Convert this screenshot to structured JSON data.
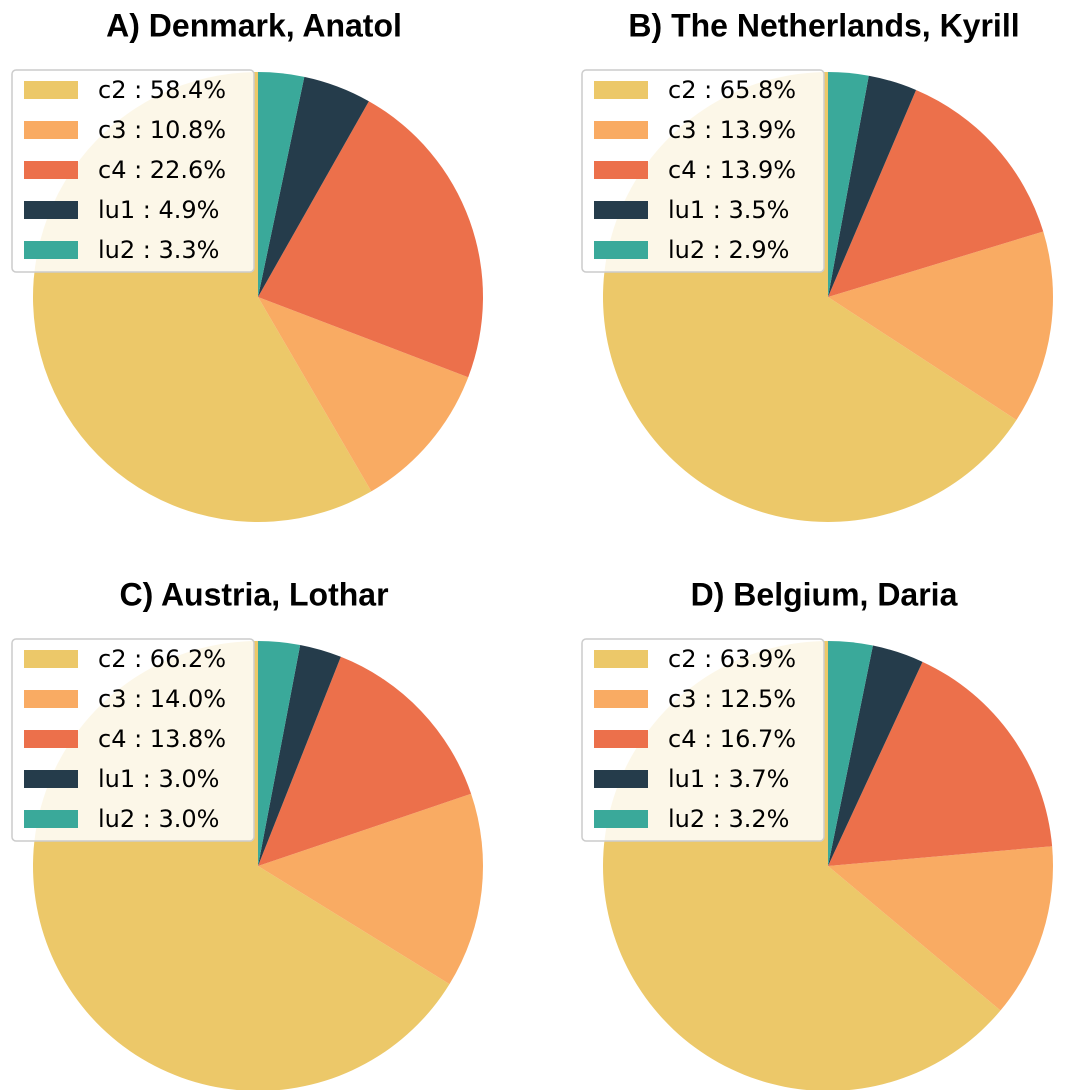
{
  "chart_data": [
    {
      "type": "pie",
      "title": "A) Denmark, Anatol",
      "values": [
        58.4,
        10.8,
        22.6,
        4.9,
        3.3
      ],
      "value_labels": [
        "c2 : 58.4%",
        "c3 : 10.8%",
        "c4 : 22.6%",
        "lu1 : 4.9%",
        "lu2 : 3.3%"
      ],
      "colors": [
        "#ecc869",
        "#f9ab63",
        "#ec704b",
        "#253c4b",
        "#3aa99a"
      ],
      "legend": "upper left"
    },
    {
      "type": "pie",
      "title": "B) The Netherlands, Kyrill",
      "values": [
        65.8,
        13.9,
        13.9,
        3.5,
        2.9
      ],
      "value_labels": [
        "c2 : 65.8%",
        "c3 : 13.9%",
        "c4 : 13.9%",
        "lu1 : 3.5%",
        "lu2 : 2.9%"
      ],
      "colors": [
        "#ecc869",
        "#f9ab63",
        "#ec704b",
        "#253c4b",
        "#3aa99a"
      ],
      "legend": "upper left"
    },
    {
      "type": "pie",
      "title": "C) Austria, Lothar",
      "values": [
        66.2,
        14.0,
        13.8,
        3.0,
        3.0
      ],
      "value_labels": [
        "c2 : 66.2%",
        "c3 : 14.0%",
        "c4 : 13.8%",
        "lu1 : 3.0%",
        "lu2 : 3.0%"
      ],
      "colors": [
        "#ecc869",
        "#f9ab63",
        "#ec704b",
        "#253c4b",
        "#3aa99a"
      ],
      "legend": "upper left"
    },
    {
      "type": "pie",
      "title": "D) Belgium, Daria",
      "values": [
        63.9,
        12.5,
        16.7,
        3.7,
        3.2
      ],
      "value_labels": [
        "c2 : 63.9%",
        "c3 : 12.5%",
        "c4 : 16.7%",
        "lu1 : 3.7%",
        "lu2 : 3.2%"
      ],
      "colors": [
        "#ecc869",
        "#f9ab63",
        "#ec704b",
        "#253c4b",
        "#3aa99a"
      ],
      "legend": "upper left"
    }
  ]
}
